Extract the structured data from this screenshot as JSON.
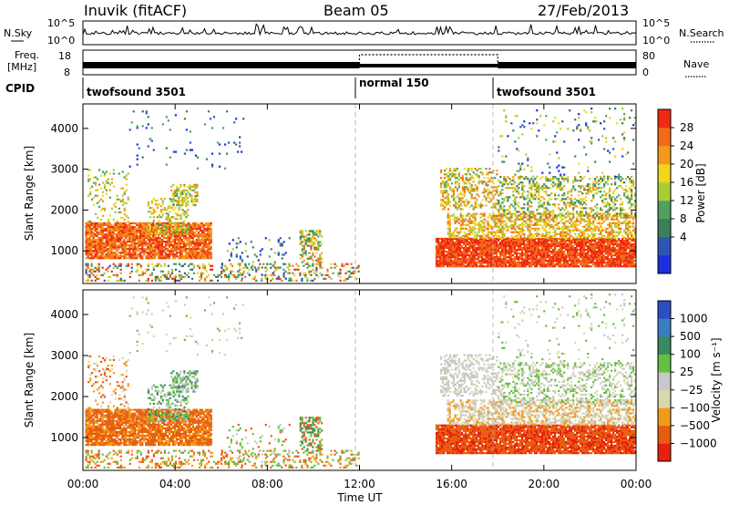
{
  "header": {
    "title": "Inuvik (fitACF)",
    "beam": "Beam 05",
    "date": "27/Feb/2013"
  },
  "colors": {
    "power_scale": [
      "#1a2fe0",
      "#2c55b8",
      "#3b7f5a",
      "#50a060",
      "#aacc33",
      "#f2d51c",
      "#f29b1a",
      "#f26a1a",
      "#ef2a14"
    ],
    "velocity_scale": [
      "#2c4fc4",
      "#3a7ec0",
      "#3a8a60",
      "#66c040",
      "#c8c8c8",
      "#d8d8b0",
      "#f29b1a",
      "#e85c12",
      "#e8200e"
    ]
  },
  "chart_data": [
    {
      "type": "line",
      "panel": "noise",
      "left_label": "N.Sky",
      "right_label": "N.Search",
      "left_ticks": [
        "10^5",
        "10^0"
      ],
      "right_ticks": [
        "10^5",
        "10^0"
      ]
    },
    {
      "type": "line",
      "panel": "frequency",
      "left_label": "Freq.",
      "left_unit": "[MHz]",
      "left_ticks": [
        "18",
        "8"
      ],
      "right_label": "Nave",
      "right_ticks": [
        "80",
        "0"
      ],
      "cpid_label": "CPID",
      "modes": [
        {
          "name": "twofsound 3501",
          "start_hour": 0,
          "end_hour": 12
        },
        {
          "name": "normal 150",
          "start_hour": 12,
          "end_hour": 18
        },
        {
          "name": "twofsound 3501",
          "start_hour": 18,
          "end_hour": 24
        }
      ]
    },
    {
      "type": "heatmap",
      "panel": "power",
      "ylabel": "Slant Range [km]",
      "yticks": [
        "1000",
        "2000",
        "3000",
        "4000"
      ],
      "ylim": [
        200,
        4600
      ],
      "xlim": [
        0,
        24
      ],
      "colorbar_label": "Power [dB]",
      "colorbar_ticks": [
        "28",
        "24",
        "20",
        "16",
        "12",
        "8",
        "4"
      ]
    },
    {
      "type": "heatmap",
      "panel": "velocity",
      "ylabel": "Slant Range [km]",
      "yticks": [
        "1000",
        "2000",
        "3000",
        "4000"
      ],
      "ylim": [
        200,
        4600
      ],
      "xlim": [
        0,
        24
      ],
      "colorbar_label": "Velocity [m s⁻¹]",
      "colorbar_ticks": [
        "1000",
        "500",
        "100",
        "25",
        "−25",
        "−100",
        "−500",
        "−1000"
      ]
    }
  ],
  "xaxis": {
    "label": "Time UT",
    "ticks": [
      "00:00",
      "04:00",
      "08:00",
      "12:00",
      "16:00",
      "20:00",
      "00:00"
    ]
  }
}
